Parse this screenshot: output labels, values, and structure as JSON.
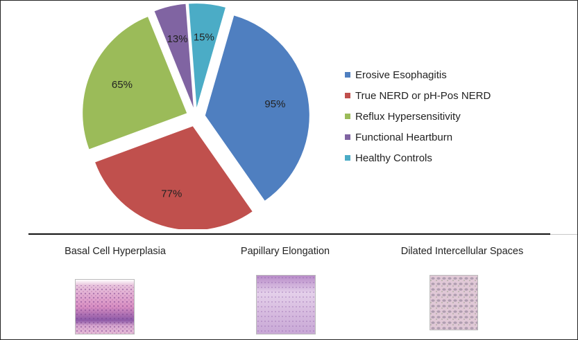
{
  "chart_data": {
    "type": "pie",
    "exploded": true,
    "slices": [
      {
        "label": "95%",
        "value": 95,
        "series": "Erosive Esophagitis",
        "color": "#4f7fc0"
      },
      {
        "label": "77%",
        "value": 77,
        "series": "True NERD or pH-Pos NERD",
        "color": "#c0504d"
      },
      {
        "label": "65%",
        "value": 65,
        "series": "Reflux Hypersensitivity",
        "color": "#9bbb59"
      },
      {
        "label": "13%",
        "value": 13,
        "series": "Functional Heartburn",
        "color": "#8064a2"
      },
      {
        "label": "15%",
        "value": 15,
        "series": "Healthy Controls",
        "color": "#4bacc6"
      }
    ],
    "legend": {
      "placement": "right",
      "entries": [
        "Erosive Esophagitis",
        "True NERD or pH-Pos NERD",
        "Reflux Hypersensitivity",
        "Functional Heartburn",
        "Healthy Controls"
      ]
    }
  },
  "panels": [
    {
      "title": "Basal Cell Hyperplasia"
    },
    {
      "title": "Papillary Elongation"
    },
    {
      "title": "Dilated Intercellular Spaces"
    }
  ]
}
